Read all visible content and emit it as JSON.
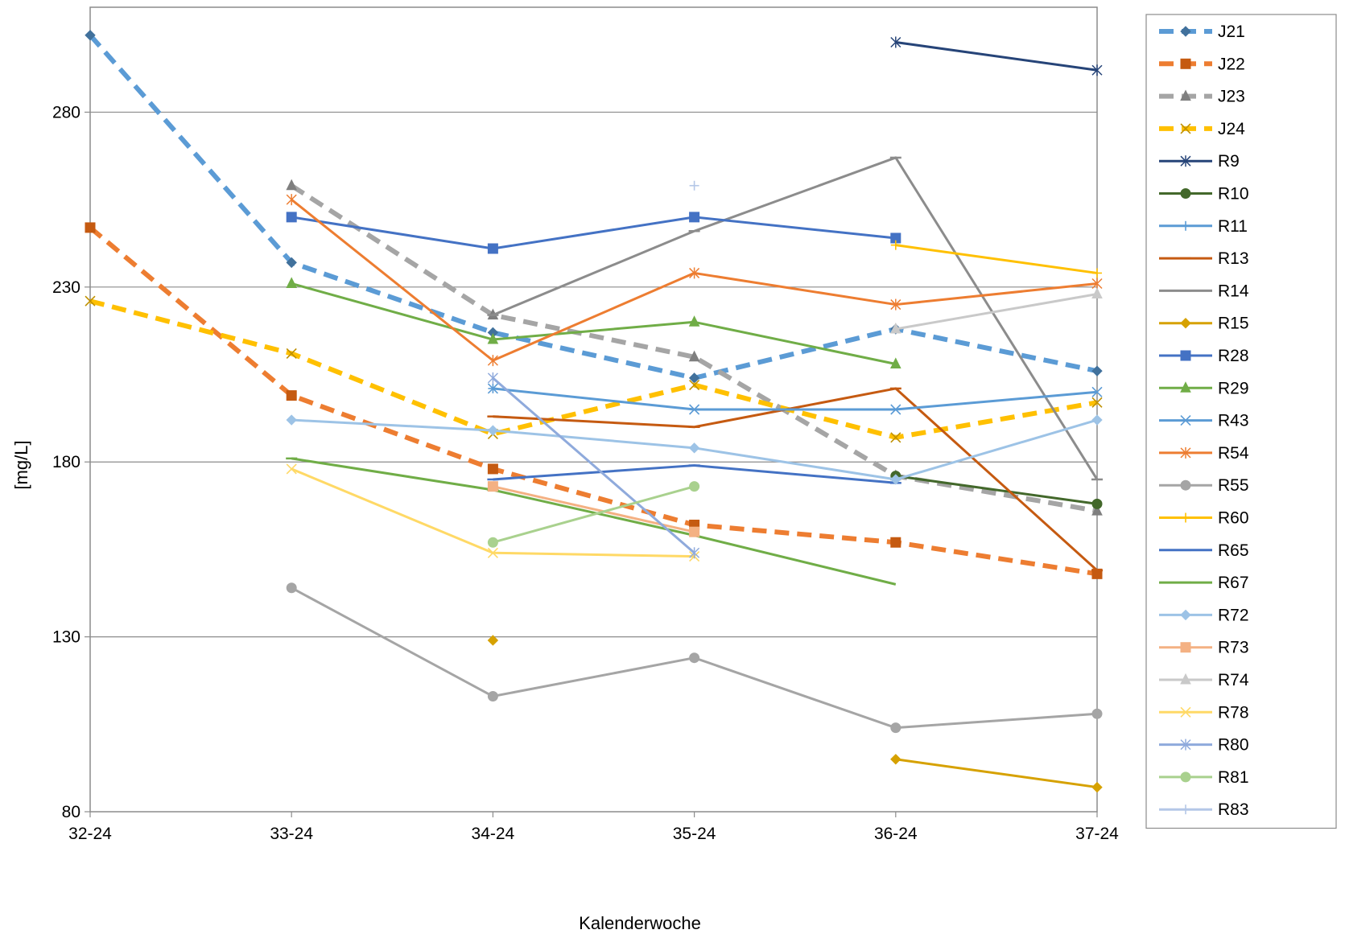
{
  "chart_data": {
    "type": "line",
    "title": "",
    "xlabel": "Kalenderwoche",
    "ylabel": "[mg/L]",
    "categories": [
      "32-24",
      "33-24",
      "34-24",
      "35-24",
      "36-24",
      "37-24"
    ],
    "y_ticks": [
      "80",
      "130",
      "180",
      "230",
      "280"
    ],
    "ylim": [
      80,
      310
    ],
    "grid": "horizontal",
    "legend_position": "right",
    "series": [
      {
        "name": "J21",
        "color": "#5B9BD5",
        "dash": true,
        "marker": "diamond",
        "markerColor": "#41719C",
        "values": [
          302,
          237,
          217,
          204,
          218,
          206
        ]
      },
      {
        "name": "J22",
        "color": "#ED7D31",
        "dash": true,
        "marker": "square",
        "markerColor": "#C55A11",
        "values": [
          247,
          199,
          178,
          162,
          157,
          148
        ]
      },
      {
        "name": "J23",
        "color": "#A5A5A5",
        "dash": true,
        "marker": "triangle",
        "markerColor": "#7F7F7F",
        "values": [
          null,
          259,
          222,
          210,
          176,
          166
        ]
      },
      {
        "name": "J24",
        "color": "#FFC000",
        "dash": true,
        "marker": "x",
        "markerColor": "#BF9000",
        "values": [
          226,
          211,
          188,
          202,
          187,
          197
        ]
      },
      {
        "name": "R9",
        "color": "#264478",
        "marker": "star",
        "values": [
          null,
          null,
          null,
          null,
          300,
          292
        ]
      },
      {
        "name": "R10",
        "color": "#43682B",
        "marker": "circle",
        "values": [
          null,
          null,
          null,
          null,
          176,
          168
        ]
      },
      {
        "name": "R11",
        "color": "#5B9BD5",
        "marker": "plus",
        "values": [
          null,
          null,
          201,
          null,
          null,
          null
        ]
      },
      {
        "name": "R13",
        "color": "#C55A11",
        "marker": "dash",
        "values": [
          null,
          null,
          193,
          190,
          201,
          149
        ]
      },
      {
        "name": "R14",
        "color": "#8C8C8C",
        "marker": "dash",
        "values": [
          null,
          null,
          222,
          246,
          267,
          175
        ]
      },
      {
        "name": "R15",
        "color": "#D6A100",
        "marker": "diamond",
        "values": [
          null,
          null,
          129,
          null,
          95,
          87
        ]
      },
      {
        "name": "R28",
        "color": "#4472C4",
        "marker": "square",
        "values": [
          null,
          250,
          241,
          250,
          244,
          null
        ]
      },
      {
        "name": "R29",
        "color": "#70AD47",
        "marker": "triangle",
        "values": [
          null,
          231,
          215,
          220,
          208,
          null
        ]
      },
      {
        "name": "R43",
        "color": "#5B9BD5",
        "marker": "x",
        "values": [
          null,
          null,
          201,
          195,
          195,
          200
        ]
      },
      {
        "name": "R54",
        "color": "#ED7D31",
        "marker": "star",
        "values": [
          null,
          255,
          209,
          234,
          225,
          231
        ]
      },
      {
        "name": "R55",
        "color": "#A5A5A5",
        "marker": "circle",
        "values": [
          null,
          144,
          113,
          124,
          104,
          108
        ]
      },
      {
        "name": "R60",
        "color": "#FFC000",
        "marker": "plus",
        "values": [
          null,
          null,
          null,
          null,
          242,
          234
        ]
      },
      {
        "name": "R65",
        "color": "#4472C4",
        "marker": "dash",
        "values": [
          null,
          null,
          175,
          179,
          174,
          null
        ]
      },
      {
        "name": "R67",
        "color": "#70AD47",
        "marker": "dash",
        "values": [
          null,
          181,
          172,
          null,
          null,
          null
        ]
      },
      {
        "name": "R72",
        "color": "#9DC3E6",
        "marker": "diamond",
        "values": [
          null,
          192,
          189,
          184,
          175,
          192
        ]
      },
      {
        "name": "R73",
        "color": "#F4B183",
        "marker": "square",
        "values": [
          null,
          null,
          173,
          160,
          null,
          null
        ]
      },
      {
        "name": "R74",
        "color": "#C9C9C9",
        "marker": "triangle",
        "values": [
          null,
          null,
          null,
          null,
          218,
          228
        ]
      },
      {
        "name": "R78",
        "color": "#FFD966",
        "marker": "x",
        "values": [
          null,
          178,
          154,
          153,
          null,
          null
        ]
      },
      {
        "name": "R80",
        "color": "#8FAADC",
        "marker": "star",
        "values": [
          null,
          null,
          204,
          154,
          null,
          null
        ]
      },
      {
        "name": "R81",
        "color": "#A9D18E",
        "marker": "circle",
        "values": [
          null,
          null,
          157,
          173,
          null,
          null
        ]
      },
      {
        "name": "R83",
        "color": "#B4C7E7",
        "marker": "plus",
        "values": [
          null,
          null,
          null,
          259,
          null,
          null
        ]
      }
    ],
    "extra_lines": [
      {
        "series": "R67",
        "color": "#70AD47",
        "x": [
          "34-24",
          "35-24",
          "36-24"
        ],
        "values": [
          172,
          159,
          145
        ]
      }
    ]
  }
}
